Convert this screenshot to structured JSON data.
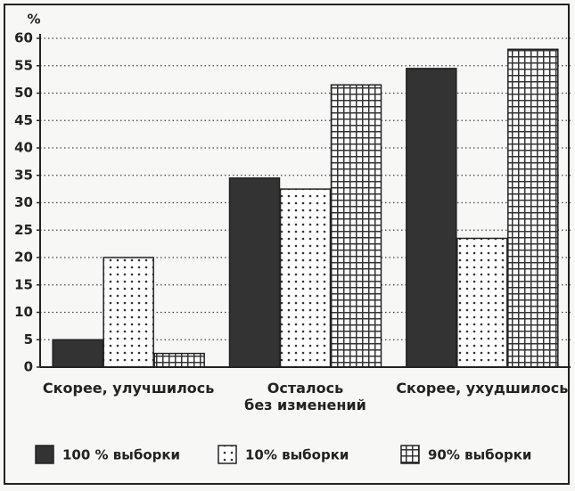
{
  "chart_data": {
    "type": "bar",
    "y_label": "%",
    "categories": [
      "Скорее, улучшилось",
      "Осталось\nбез изменений",
      "Скорее, ухудшилось"
    ],
    "series": [
      {
        "name": "100 % выборки",
        "color": "#333333",
        "pattern": "solid",
        "values": [
          5,
          34.5,
          54.5
        ]
      },
      {
        "name": "10% выборки",
        "color": "#333333",
        "pattern": "dots",
        "values": [
          20,
          32.5,
          23.5
        ]
      },
      {
        "name": "90% выборки",
        "color": "#333333",
        "pattern": "grid",
        "values": [
          2.5,
          51.5,
          58
        ]
      }
    ],
    "ylim": [
      0,
      60
    ],
    "yticks": [
      0,
      5,
      10,
      15,
      20,
      25,
      30,
      35,
      40,
      45,
      50,
      55,
      60
    ],
    "grid": true
  }
}
